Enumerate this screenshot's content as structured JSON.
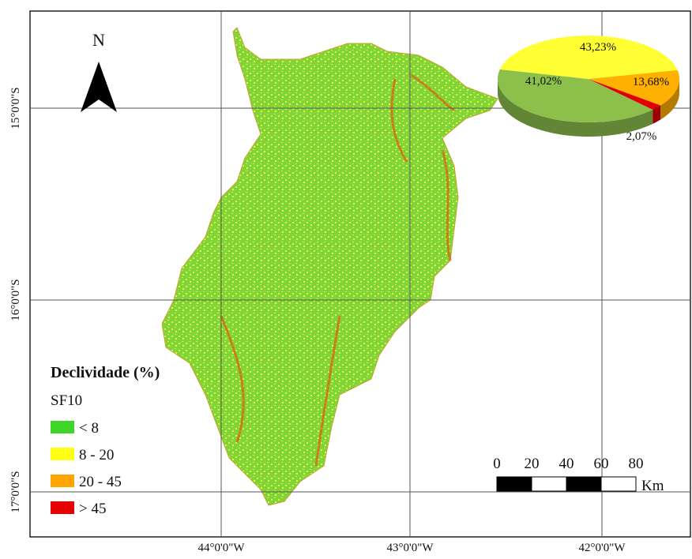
{
  "map": {
    "north": "N",
    "lat_labels": [
      "15°0'0\"S",
      "16°0'0\"S",
      "17°0'0\"S"
    ],
    "lon_labels": [
      "44°0'0\"W",
      "43°0'0\"W",
      "42°0'0\"W"
    ],
    "legend": {
      "title": "Declividade (%)",
      "subtitle": "SF10",
      "items": [
        {
          "label": "< 8",
          "color": "#3fd62a"
        },
        {
          "label": "8 - 20",
          "color": "#ffff14"
        },
        {
          "label": "20 - 45",
          "color": "#ffa500"
        },
        {
          "label": "> 45",
          "color": "#e60000"
        }
      ]
    },
    "scale": {
      "labels": [
        "0",
        "20",
        "40",
        "60",
        "80"
      ],
      "unit": "Km"
    }
  },
  "pie": {
    "type": "pie",
    "categories": [
      "< 8",
      "8 - 20",
      "20 - 45",
      "> 45"
    ],
    "values": [
      41.02,
      43.23,
      13.68,
      2.07
    ],
    "value_labels": [
      "41,02%",
      "43,23%",
      "13,68%",
      "2,07%"
    ],
    "colors": [
      "#8cc04b",
      "#ffff33",
      "#ffb000",
      "#e00000"
    ]
  }
}
